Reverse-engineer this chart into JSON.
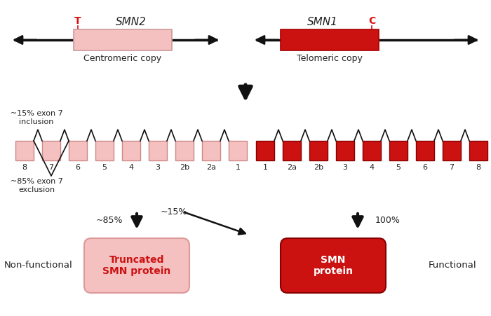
{
  "bg_color": "#ffffff",
  "light_pink": "#f5c0c0",
  "dark_red": "#cc1111",
  "arrow_color": "#111111",
  "text_color": "#222222",
  "smn_label_color": "#dd1111",
  "smn2_title": "SMN2",
  "smn1_title": "SMN1",
  "centromeric_label": "Centromeric copy",
  "telomeric_label": "Telomeric copy",
  "t_label": "T",
  "c_label": "C",
  "truncated_label": "Truncated\nSMN protein",
  "smn_protein_label": "SMN\nprotein",
  "nonfunctional_label": "Non-functional",
  "functional_label": "Functional",
  "pct85_label": "~85%",
  "pct15_label": "~15%",
  "pct100_label": "100%",
  "exon7_inclusion": "~15% exon 7\ninclusion",
  "exon7_exclusion": "~85% exon 7\nexclusion",
  "smn2_exons": [
    "8",
    "7",
    "6",
    "5",
    "4",
    "3",
    "2b",
    "2a",
    "1"
  ],
  "smn1_exons": [
    "1",
    "2a",
    "2b",
    "3",
    "4",
    "5",
    "6",
    "7",
    "8"
  ]
}
